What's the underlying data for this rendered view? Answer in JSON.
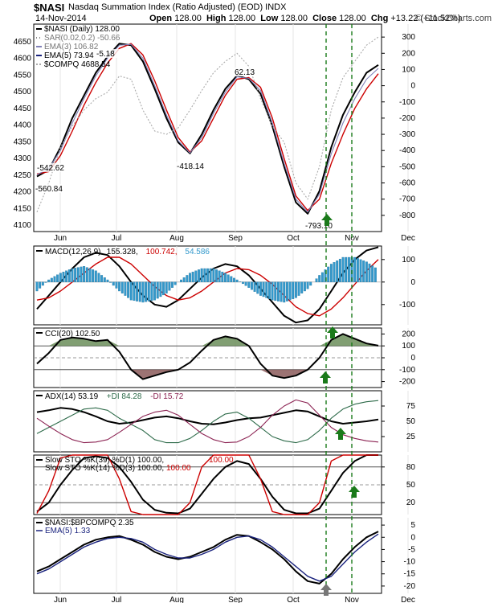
{
  "header": {
    "symbol": "$NASI",
    "description": "Nasdaq Summation Index (Ratio Adjusted) (EOD)",
    "exchange": "INDX",
    "date": "14-Nov-2014",
    "open_label": "Open",
    "open": "128.00",
    "high_label": "High",
    "high": "128.00",
    "low_label": "Low",
    "low": "128.00",
    "close_label": "Close",
    "close": "128.00",
    "chg_label": "Chg",
    "chg": "+13.22 (+11.52%)",
    "copyright": "© StockCharts.com"
  },
  "colors": {
    "black": "#000000",
    "red": "#cc0000",
    "sar": "#888888",
    "ema3": "#8080b8",
    "ema5": "#1a237e",
    "compq": "#aaaaaa",
    "hist": "#3399cc",
    "cci_pos": "#6b8e5a",
    "cci_neg": "#8b5a5a",
    "plus_di": "#2e6b4a",
    "minus_di": "#8b2252",
    "arrow_green": "#1a7a1a",
    "arrow_gray": "#777777",
    "vline": "#1a7a1a"
  },
  "chart_data": [
    {
      "type": "line",
      "panel": "price",
      "legend": [
        {
          "label": "$NASI (Daily) 128.00",
          "style": "black"
        },
        {
          "label": "SAR(0.02,0.2) -50.66",
          "style": "sar"
        },
        {
          "label": "EMA(3) 106.82",
          "style": "ema3"
        },
        {
          "label": "EMA(5) 73.94",
          "style": "ema5"
        },
        {
          "label": "$COMPQ 4688.54",
          "style": "compq"
        }
      ],
      "left_axis_ticks": [
        "4650",
        "4600",
        "4550",
        "4500",
        "4450",
        "4400",
        "4350",
        "4300",
        "4250",
        "4200",
        "4150",
        "4100"
      ],
      "right_axis_ticks": [
        "300",
        "200",
        "100",
        "0",
        "-100",
        "-200",
        "-300",
        "-400",
        "-500",
        "-600",
        "-700",
        "-800"
      ],
      "ylim": [
        -900,
        380
      ],
      "months": [
        "Jun",
        "Jul",
        "Aug",
        "Sep",
        "Oct",
        "Nov",
        "Dec"
      ],
      "annotations": [
        "-542.62",
        "-560.84",
        "-5.18",
        "62.13",
        "-418.14",
        "-793.10"
      ],
      "series": [
        {
          "name": "$NASI (Daily)",
          "style": "black",
          "values": [
            -560,
            -520,
            -380,
            -200,
            -60,
            80,
            180,
            260,
            250,
            150,
            -20,
            -200,
            -350,
            -418,
            -300,
            -150,
            -20,
            62,
            40,
            -50,
            -250,
            -500,
            -720,
            -790,
            -650,
            -380,
            -180,
            -40,
            80,
            128
          ]
        },
        {
          "name": "EMA(5)",
          "style": "red",
          "values": [
            -545,
            -530,
            -430,
            -280,
            -120,
            20,
            140,
            230,
            260,
            190,
            30,
            -150,
            -320,
            -410,
            -340,
            -200,
            -60,
            40,
            50,
            -10,
            -200,
            -450,
            -680,
            -770,
            -700,
            -480,
            -300,
            -140,
            -20,
            74
          ]
        },
        {
          "name": "EMA(3)",
          "style": "ema3",
          "values": [
            -550,
            -510,
            -400,
            -230,
            -80,
            60,
            170,
            250,
            255,
            170,
            0,
            -180,
            -340,
            -415,
            -320,
            -170,
            -40,
            55,
            45,
            -30,
            -230,
            -480,
            -700,
            -780,
            -670,
            -420,
            -230,
            -80,
            40,
            107
          ]
        },
        {
          "name": "$COMPQ",
          "style": "compq",
          "values": [
            -780,
            -600,
            -380,
            -250,
            -150,
            -80,
            -40,
            60,
            40,
            -150,
            -280,
            -300,
            -260,
            -150,
            -30,
            80,
            150,
            200,
            120,
            -80,
            -250,
            -350,
            -600,
            -700,
            -500,
            -150,
            50,
            150,
            250,
            300
          ]
        }
      ]
    },
    {
      "type": "line",
      "panel": "macd",
      "legend": [
        {
          "label": "MACD(12,26,9)",
          "style": "black"
        },
        {
          "label": "155.328,",
          "style": "black"
        },
        {
          "label": "100.742,",
          "style": "red"
        },
        {
          "label": "54.586",
          "style": "hist"
        }
      ],
      "right_axis_ticks": [
        "100",
        "0",
        "-100"
      ],
      "ylim": [
        -190,
        160
      ],
      "series": [
        {
          "name": "MACD",
          "style": "black",
          "values": [
            -120,
            -60,
            0,
            60,
            110,
            130,
            120,
            70,
            0,
            -60,
            -100,
            -110,
            -80,
            -30,
            20,
            60,
            80,
            70,
            30,
            -30,
            -90,
            -150,
            -180,
            -170,
            -120,
            -40,
            40,
            100,
            140,
            155
          ]
        },
        {
          "name": "Signal",
          "style": "red",
          "values": [
            -80,
            -70,
            -40,
            0,
            40,
            80,
            110,
            110,
            80,
            30,
            -20,
            -60,
            -80,
            -70,
            -40,
            0,
            40,
            60,
            55,
            30,
            -10,
            -60,
            -110,
            -140,
            -150,
            -120,
            -70,
            -10,
            50,
            100
          ]
        },
        {
          "name": "Histogram",
          "style": "hist",
          "values": [
            -40,
            10,
            40,
            60,
            70,
            50,
            10,
            -40,
            -80,
            -90,
            -80,
            -50,
            0,
            40,
            60,
            60,
            40,
            10,
            -25,
            -60,
            -80,
            -90,
            -70,
            -30,
            30,
            80,
            110,
            110,
            90,
            55
          ]
        }
      ]
    },
    {
      "type": "area",
      "panel": "cci",
      "legend": [
        {
          "label": "CCI(20) 102.50",
          "style": "black"
        }
      ],
      "right_axis_ticks": [
        "200",
        "100",
        "0",
        "-100",
        "-200"
      ],
      "ylim": [
        -250,
        250
      ],
      "series": [
        {
          "name": "CCI(20)",
          "style": "black",
          "values": [
            -50,
            40,
            150,
            170,
            160,
            140,
            150,
            50,
            -100,
            -180,
            -150,
            -120,
            -100,
            -40,
            60,
            150,
            180,
            160,
            100,
            -50,
            -150,
            -170,
            -150,
            -100,
            0,
            150,
            200,
            160,
            120,
            102
          ]
        }
      ]
    },
    {
      "type": "line",
      "panel": "adx",
      "legend": [
        {
          "label": "ADX(14) 53.19",
          "style": "black"
        },
        {
          "label": "+DI 84.28",
          "style": "plus_di"
        },
        {
          "label": "-DI 15.72",
          "style": "minus_di"
        }
      ],
      "right_axis_ticks": [
        "75",
        "50",
        "25"
      ],
      "ylim": [
        0,
        100
      ],
      "series": [
        {
          "name": "ADX(14)",
          "style": "black",
          "values": [
            65,
            68,
            72,
            70,
            65,
            58,
            50,
            46,
            48,
            52,
            56,
            58,
            55,
            50,
            46,
            45,
            48,
            52,
            55,
            56,
            60,
            64,
            68,
            66,
            58,
            50,
            46,
            48,
            50,
            53
          ]
        },
        {
          "name": "+DI",
          "style": "plus_di",
          "values": [
            30,
            40,
            50,
            60,
            70,
            72,
            68,
            55,
            45,
            35,
            20,
            15,
            15,
            22,
            35,
            50,
            62,
            65,
            55,
            40,
            25,
            18,
            15,
            20,
            35,
            55,
            70,
            78,
            82,
            84
          ]
        },
        {
          "name": "-DI",
          "style": "minus_di",
          "values": [
            55,
            42,
            30,
            20,
            15,
            16,
            20,
            32,
            45,
            58,
            65,
            68,
            60,
            45,
            30,
            20,
            15,
            16,
            25,
            40,
            60,
            75,
            85,
            80,
            60,
            40,
            28,
            22,
            18,
            16
          ]
        }
      ]
    },
    {
      "type": "line",
      "panel": "stoch",
      "legend": [
        {
          "label": "Slow STO %K(39) %D(1) 100.00,",
          "style": "black"
        },
        {
          "label": "100.00",
          "style": "red"
        },
        {
          "label": "Slow STO %K(14) %D(3) 100.00,",
          "style": "black"
        },
        {
          "label": "100.00",
          "style": "red"
        }
      ],
      "right_axis_ticks": [
        "80",
        "50",
        "20"
      ],
      "ylim": [
        0,
        100
      ],
      "series": [
        {
          "name": "Slow STO %K(39)",
          "style": "black",
          "values": [
            5,
            20,
            50,
            75,
            95,
            98,
            95,
            80,
            55,
            25,
            8,
            3,
            2,
            10,
            35,
            60,
            80,
            90,
            85,
            60,
            30,
            8,
            2,
            2,
            10,
            40,
            70,
            90,
            100,
            100
          ]
        },
        {
          "name": "Slow STO %K(14)",
          "style": "red",
          "values": [
            2,
            40,
            95,
            100,
            100,
            100,
            100,
            60,
            5,
            0,
            0,
            0,
            0,
            20,
            80,
            100,
            100,
            100,
            100,
            60,
            5,
            0,
            0,
            0,
            20,
            90,
            100,
            100,
            100,
            100
          ]
        }
      ]
    },
    {
      "type": "line",
      "panel": "ratio",
      "legend": [
        {
          "label": "$NASI:$BPCOMPQ 2.35",
          "style": "black"
        },
        {
          "label": "EMA(5) 1.33",
          "style": "ema5"
        }
      ],
      "right_axis_ticks": [
        "5",
        "0",
        "-5",
        "-10",
        "-15",
        "-20"
      ],
      "ylim": [
        -23,
        8
      ],
      "months": [
        "Jun",
        "Jul",
        "Aug",
        "Sep",
        "Oct",
        "Nov",
        "Dec"
      ],
      "series": [
        {
          "name": "$NASI:$BPCOMPQ",
          "style": "black",
          "values": [
            -14,
            -12,
            -9,
            -6,
            -3,
            -1,
            0,
            0.5,
            -1,
            -3,
            -6,
            -8,
            -9,
            -8,
            -6,
            -4,
            -1,
            1,
            0.5,
            -2,
            -5,
            -9,
            -14,
            -18,
            -19,
            -15,
            -9,
            -4,
            0,
            2.35
          ]
        },
        {
          "name": "EMA(5)",
          "style": "ema5",
          "values": [
            -15,
            -13,
            -10,
            -7,
            -4,
            -2,
            -0.5,
            0,
            -0.5,
            -2,
            -5,
            -7,
            -8.5,
            -8.5,
            -7,
            -5,
            -2,
            0,
            0.5,
            -1,
            -4,
            -8,
            -12,
            -16,
            -18,
            -16,
            -11,
            -6,
            -2,
            1.33
          ]
        }
      ]
    }
  ]
}
